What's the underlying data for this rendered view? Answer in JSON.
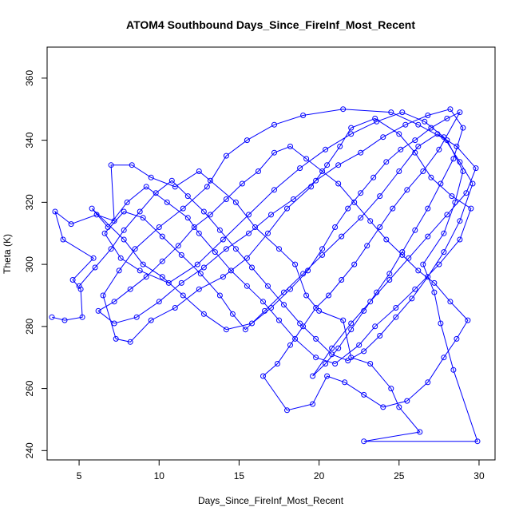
{
  "chart_data": {
    "type": "line",
    "title": "ATOM4 Southbound Days_Since_FireInf_Most_Recent",
    "xlabel": "Days_Since_FireInf_Most_Recent",
    "ylabel": "Theta (K)",
    "xlim": [
      3,
      31
    ],
    "ylim": [
      237,
      370
    ],
    "xticks": [
      5,
      10,
      15,
      20,
      25,
      30
    ],
    "yticks": [
      240,
      260,
      280,
      300,
      320,
      340,
      360
    ],
    "grid": false,
    "legend": "none",
    "series": [
      {
        "color": "#0000ff",
        "marker": "open-circle",
        "points": [
          [
            3.3,
            283
          ],
          [
            4.1,
            282
          ],
          [
            5.2,
            283
          ],
          [
            5.1,
            292
          ],
          [
            4.6,
            295
          ],
          [
            5.9,
            302
          ],
          [
            4.0,
            308
          ],
          [
            3.5,
            317
          ],
          [
            4.5,
            313
          ],
          [
            6.1,
            316
          ],
          [
            7.2,
            314
          ],
          [
            7.0,
            332
          ],
          [
            8.3,
            332
          ],
          [
            9.5,
            328
          ],
          [
            11.0,
            325
          ],
          [
            12.5,
            330
          ],
          [
            13.2,
            327
          ],
          [
            14.8,
            320
          ],
          [
            16.0,
            312
          ],
          [
            17.5,
            305
          ],
          [
            18.5,
            300
          ],
          [
            19.2,
            290
          ],
          [
            20.0,
            285
          ],
          [
            21.5,
            282
          ],
          [
            22.0,
            270
          ],
          [
            23.2,
            268
          ],
          [
            24.5,
            260
          ],
          [
            25.0,
            254
          ],
          [
            26.3,
            246
          ],
          [
            22.8,
            243
          ],
          [
            29.9,
            243
          ],
          [
            28.4,
            266
          ],
          [
            27.6,
            281
          ],
          [
            27.2,
            291
          ],
          [
            26.5,
            300
          ],
          [
            27.8,
            310
          ],
          [
            28.5,
            320
          ],
          [
            29.0,
            330
          ],
          [
            28.0,
            340
          ],
          [
            26.2,
            345
          ],
          [
            24.5,
            349
          ],
          [
            21.5,
            350
          ],
          [
            19.0,
            348
          ],
          [
            17.2,
            345
          ],
          [
            15.5,
            340
          ],
          [
            14.2,
            335
          ],
          [
            13.0,
            325
          ],
          [
            11.5,
            318
          ],
          [
            10.0,
            312
          ],
          [
            8.5,
            305
          ],
          [
            7.5,
            298
          ],
          [
            6.5,
            290
          ],
          [
            7.3,
            276
          ],
          [
            8.2,
            275
          ],
          [
            9.5,
            282
          ],
          [
            11.0,
            286
          ],
          [
            12.5,
            292
          ],
          [
            14.0,
            296
          ],
          [
            15.5,
            302
          ],
          [
            16.8,
            310
          ],
          [
            18.0,
            318
          ],
          [
            19.5,
            325
          ],
          [
            20.5,
            332
          ],
          [
            21.3,
            338
          ],
          [
            22.0,
            344
          ],
          [
            23.5,
            347
          ],
          [
            25.0,
            342
          ],
          [
            26.0,
            336
          ],
          [
            27.0,
            328
          ],
          [
            28.3,
            322
          ],
          [
            29.5,
            318
          ],
          [
            28.8,
            308
          ],
          [
            27.5,
            300
          ],
          [
            26.0,
            292
          ],
          [
            24.8,
            286
          ],
          [
            23.5,
            280
          ],
          [
            22.5,
            274
          ],
          [
            21.0,
            268
          ],
          [
            19.8,
            270
          ],
          [
            18.5,
            276
          ],
          [
            17.5,
            282
          ],
          [
            16.5,
            288
          ],
          [
            15.5,
            293
          ],
          [
            14.5,
            298
          ],
          [
            13.5,
            304
          ],
          [
            12.5,
            310
          ],
          [
            11.8,
            315
          ],
          [
            10.5,
            320
          ],
          [
            9.2,
            325
          ],
          [
            8.0,
            320
          ],
          [
            6.8,
            312
          ],
          [
            5.8,
            318
          ],
          [
            7.8,
            308
          ],
          [
            9.0,
            300
          ],
          [
            10.2,
            296
          ],
          [
            11.5,
            290
          ],
          [
            12.8,
            284
          ],
          [
            14.2,
            279
          ],
          [
            15.8,
            281
          ],
          [
            17.0,
            286
          ],
          [
            18.2,
            292
          ],
          [
            19.3,
            298
          ],
          [
            20.2,
            305
          ],
          [
            21.0,
            312
          ],
          [
            21.8,
            318
          ],
          [
            22.6,
            323
          ],
          [
            23.4,
            328
          ],
          [
            24.2,
            333
          ],
          [
            25.1,
            337
          ],
          [
            26.0,
            340
          ],
          [
            27.0,
            344
          ],
          [
            28.0,
            347
          ],
          [
            28.8,
            349
          ],
          [
            27.5,
            337
          ],
          [
            26.5,
            330
          ],
          [
            25.5,
            324
          ],
          [
            24.6,
            318
          ],
          [
            23.8,
            312
          ],
          [
            23.0,
            306
          ],
          [
            22.2,
            300
          ],
          [
            21.4,
            295
          ],
          [
            20.6,
            290
          ],
          [
            19.8,
            286
          ],
          [
            19.0,
            280
          ],
          [
            18.2,
            274
          ],
          [
            17.4,
            268
          ],
          [
            16.5,
            264
          ],
          [
            18.0,
            253
          ],
          [
            19.6,
            255
          ],
          [
            20.5,
            264
          ],
          [
            21.6,
            262
          ],
          [
            22.8,
            258
          ],
          [
            24.0,
            254
          ],
          [
            25.5,
            256
          ],
          [
            26.8,
            262
          ],
          [
            27.8,
            270
          ],
          [
            28.6,
            276
          ],
          [
            29.3,
            282
          ],
          [
            28.2,
            288
          ],
          [
            27.2,
            294
          ],
          [
            26.2,
            298
          ],
          [
            25.2,
            303
          ],
          [
            24.2,
            308
          ],
          [
            23.2,
            314
          ],
          [
            22.2,
            320
          ],
          [
            21.2,
            326
          ],
          [
            20.2,
            330
          ],
          [
            19.2,
            334
          ],
          [
            18.2,
            338
          ],
          [
            17.2,
            336
          ],
          [
            16.2,
            330
          ],
          [
            15.2,
            326
          ],
          [
            14.2,
            321
          ],
          [
            13.2,
            316
          ],
          [
            12.2,
            312
          ],
          [
            11.2,
            306
          ],
          [
            10.2,
            301
          ],
          [
            9.2,
            296
          ],
          [
            8.2,
            292
          ],
          [
            7.2,
            288
          ],
          [
            6.2,
            285
          ],
          [
            7.2,
            281
          ],
          [
            8.6,
            283
          ],
          [
            10.0,
            288
          ],
          [
            11.4,
            294
          ],
          [
            12.8,
            299
          ],
          [
            14.2,
            305
          ],
          [
            15.6,
            310
          ],
          [
            17.0,
            316
          ],
          [
            18.4,
            321
          ],
          [
            19.8,
            327
          ],
          [
            21.2,
            332
          ],
          [
            22.6,
            336
          ],
          [
            24.0,
            341
          ],
          [
            25.4,
            345
          ],
          [
            26.8,
            348
          ],
          [
            28.2,
            350
          ],
          [
            29.0,
            344
          ],
          [
            28.4,
            334
          ],
          [
            27.6,
            326
          ],
          [
            26.8,
            318
          ],
          [
            26.0,
            311
          ],
          [
            25.2,
            304
          ],
          [
            24.4,
            297
          ],
          [
            23.6,
            291
          ],
          [
            22.8,
            285
          ],
          [
            22.0,
            279
          ],
          [
            21.2,
            273
          ],
          [
            20.4,
            268
          ],
          [
            19.6,
            264
          ],
          [
            20.8,
            273
          ],
          [
            22.0,
            281
          ],
          [
            23.2,
            288
          ],
          [
            24.4,
            295
          ],
          [
            25.6,
            302
          ],
          [
            26.8,
            309
          ],
          [
            28.0,
            316
          ],
          [
            29.2,
            323
          ],
          [
            29.8,
            331
          ],
          [
            28.6,
            338
          ],
          [
            27.4,
            342
          ],
          [
            26.2,
            338
          ],
          [
            25.0,
            330
          ],
          [
            23.8,
            322
          ],
          [
            22.6,
            315
          ],
          [
            21.4,
            309
          ],
          [
            20.2,
            303
          ],
          [
            19.0,
            297
          ],
          [
            17.8,
            291
          ],
          [
            16.6,
            285
          ],
          [
            15.4,
            279
          ],
          [
            14.6,
            284
          ],
          [
            13.8,
            290
          ],
          [
            12.6,
            297
          ],
          [
            11.4,
            303
          ],
          [
            10.2,
            309
          ],
          [
            9.0,
            315
          ],
          [
            7.8,
            317
          ],
          [
            6.6,
            310
          ],
          [
            7.6,
            302
          ],
          [
            8.8,
            298
          ],
          [
            10.6,
            294
          ],
          [
            12.4,
            300
          ],
          [
            14.0,
            308
          ],
          [
            15.6,
            316
          ],
          [
            17.2,
            324
          ],
          [
            18.8,
            331
          ],
          [
            20.4,
            337
          ],
          [
            22.0,
            342
          ],
          [
            23.6,
            346
          ],
          [
            25.2,
            349
          ],
          [
            26.6,
            346
          ],
          [
            27.8,
            341
          ],
          [
            28.8,
            333
          ],
          [
            29.6,
            326
          ],
          [
            28.8,
            314
          ],
          [
            27.8,
            304
          ],
          [
            26.8,
            296
          ],
          [
            25.8,
            289
          ],
          [
            24.8,
            283
          ],
          [
            23.8,
            277
          ],
          [
            22.8,
            272
          ],
          [
            21.8,
            269
          ],
          [
            20.8,
            271
          ],
          [
            19.8,
            276
          ],
          [
            18.8,
            281
          ],
          [
            17.8,
            287
          ],
          [
            16.8,
            293
          ],
          [
            15.8,
            299
          ],
          [
            14.8,
            305
          ],
          [
            13.8,
            311
          ],
          [
            12.8,
            317
          ],
          [
            11.8,
            322
          ],
          [
            10.8,
            327
          ],
          [
            9.8,
            323
          ],
          [
            8.8,
            317
          ],
          [
            7.8,
            311
          ],
          [
            7.0,
            305
          ],
          [
            6.0,
            299
          ],
          [
            5.0,
            293
          ]
        ]
      }
    ]
  }
}
